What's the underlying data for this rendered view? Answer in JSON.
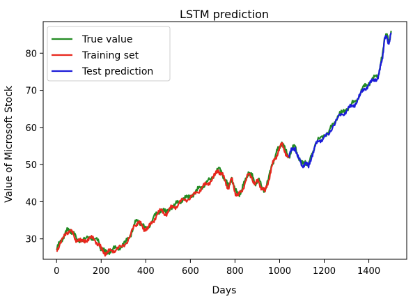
{
  "chart_data": {
    "type": "line",
    "title": "LSTM prediction",
    "xlabel": "Days",
    "ylabel": "Value of Microsoft Stock",
    "xlim": [
      -60,
      1570
    ],
    "ylim": [
      24.5,
      88.5
    ],
    "xticks": [
      0,
      200,
      400,
      600,
      800,
      1000,
      1200,
      1400
    ],
    "yticks": [
      30,
      40,
      50,
      60,
      70,
      80
    ],
    "grid": false,
    "legend_position": "top-left",
    "series": [
      {
        "name": "True value",
        "color": "#228b22",
        "x": [
          0,
          15,
          30,
          45,
          60,
          75,
          90,
          110,
          130,
          150,
          170,
          190,
          200,
          215,
          230,
          250,
          270,
          290,
          310,
          330,
          350,
          365,
          380,
          395,
          410,
          430,
          450,
          470,
          490,
          510,
          530,
          550,
          570,
          590,
          610,
          630,
          650,
          670,
          690,
          710,
          725,
          740,
          755,
          770,
          785,
          800,
          815,
          830,
          845,
          860,
          875,
          890,
          905,
          920,
          935,
          950,
          965,
          980,
          995,
          1010,
          1025,
          1040,
          1055,
          1070,
          1085,
          1100,
          1115,
          1130,
          1145,
          1160,
          1180,
          1200,
          1220,
          1240,
          1260,
          1280,
          1300,
          1320,
          1340,
          1360,
          1380,
          1400,
          1420,
          1440,
          1450,
          1460,
          1470,
          1480,
          1490,
          1500
        ],
        "y": [
          27,
          29,
          30.5,
          32,
          32.5,
          31.5,
          30,
          29.5,
          30,
          30.5,
          30,
          29,
          27.5,
          26.5,
          26.5,
          27,
          27.5,
          28,
          29,
          31,
          34,
          35,
          34,
          33,
          33,
          35,
          37,
          38,
          37,
          38.5,
          39,
          40,
          41,
          41,
          42,
          43,
          44,
          45,
          46,
          47.5,
          49,
          48,
          46,
          44,
          46.5,
          43,
          42,
          43,
          45.5,
          48,
          47,
          45,
          46,
          44,
          43,
          46,
          50,
          52,
          54.5,
          56,
          54,
          52,
          54,
          55,
          52,
          50,
          51,
          49.5,
          53,
          55.5,
          57,
          58,
          58.5,
          61,
          63,
          64,
          65,
          66,
          67,
          69,
          71,
          72,
          73,
          74,
          76,
          79,
          84,
          85,
          83,
          86
        ]
      },
      {
        "name": "Training set",
        "color": "#e8261c",
        "x": [
          0,
          15,
          30,
          45,
          60,
          75,
          90,
          110,
          130,
          150,
          170,
          190,
          200,
          215,
          230,
          250,
          270,
          290,
          310,
          330,
          350,
          365,
          380,
          395,
          410,
          430,
          450,
          470,
          490,
          510,
          530,
          550,
          570,
          590,
          610,
          630,
          650,
          670,
          690,
          710,
          725,
          740,
          755,
          770,
          785,
          800,
          815,
          830,
          845,
          860,
          875,
          890,
          905,
          920,
          935,
          950,
          965,
          980,
          995,
          1010,
          1025,
          1040
        ],
        "y": [
          26.8,
          28.7,
          30.2,
          31.7,
          32.2,
          31.2,
          29.7,
          29.2,
          29.7,
          30.2,
          29.7,
          28.7,
          27.2,
          26.3,
          26.3,
          26.8,
          27.3,
          27.8,
          28.7,
          30.7,
          33.6,
          34.6,
          33.6,
          32.7,
          32.7,
          34.6,
          36.6,
          37.6,
          36.7,
          38.1,
          38.6,
          39.6,
          40.6,
          40.6,
          41.6,
          42.6,
          43.6,
          44.6,
          45.6,
          47.1,
          48.5,
          47.6,
          45.6,
          43.7,
          46.1,
          42.7,
          41.7,
          42.7,
          45.1,
          47.5,
          46.6,
          44.6,
          45.6,
          43.7,
          42.7,
          45.6,
          49.5,
          51.5,
          53.9,
          55.4,
          53.6,
          51.7
        ]
      },
      {
        "name": "Test prediction",
        "color": "#1c1cd8",
        "x": [
          1040,
          1055,
          1070,
          1085,
          1100,
          1115,
          1130,
          1145,
          1160,
          1180,
          1200,
          1220,
          1240,
          1260,
          1280,
          1300,
          1320,
          1340,
          1360,
          1380,
          1400,
          1420,
          1440,
          1450,
          1460,
          1470,
          1480,
          1490,
          1500
        ],
        "y": [
          52.2,
          53.8,
          54.6,
          51.6,
          49.6,
          50.6,
          49.2,
          52.6,
          55,
          56.5,
          57.5,
          58,
          60.5,
          62.5,
          63.5,
          64.5,
          65.5,
          66.5,
          68.5,
          70.5,
          71.5,
          72.5,
          73.5,
          75.5,
          78.5,
          83.5,
          84.5,
          82.5,
          85.5
        ]
      }
    ]
  }
}
